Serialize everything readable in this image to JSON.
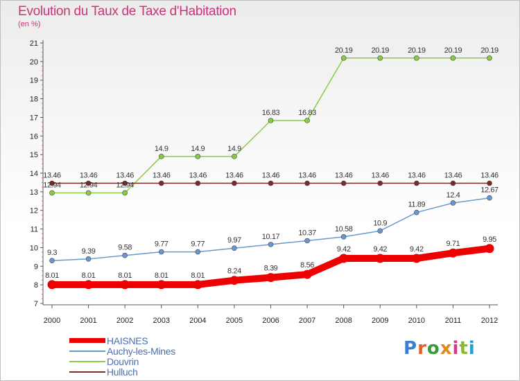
{
  "title": "Evolution du Taux de Taxe d'Habitation",
  "subtitle": "(en %)",
  "logo": {
    "text": "Proxiti",
    "letter_colors": [
      "#3a7fd0",
      "#e0602a",
      "#3a9a3a",
      "#e08a1a",
      "#d83a8a",
      "#8aba2a",
      "#2a9ad0"
    ]
  },
  "chart_data": {
    "type": "line",
    "x": [
      "2000",
      "2001",
      "2002",
      "2003",
      "2004",
      "2005",
      "2006",
      "2007",
      "2008",
      "2009",
      "2010",
      "2011",
      "2012"
    ],
    "ylim": [
      7,
      21
    ],
    "yticks": [
      7,
      8,
      9,
      10,
      11,
      12,
      13,
      14,
      15,
      16,
      17,
      18,
      19,
      20,
      21
    ],
    "grid": false,
    "legend_position": "bottom-left",
    "series": [
      {
        "name": "Douvrin",
        "color": "#88cc44",
        "values": [
          12.94,
          12.94,
          12.94,
          14.9,
          14.9,
          14.9,
          16.83,
          16.83,
          20.19,
          20.19,
          20.19,
          20.19,
          20.19
        ],
        "labels": [
          "12.94",
          "12.94",
          "12.94",
          "14.9",
          "14.9",
          "14.9",
          "16.83",
          "16.83",
          "20.19",
          "20.19",
          "20.19",
          "20.19",
          "20.19"
        ]
      },
      {
        "name": "Hulluch",
        "color": "#7a2a2a",
        "values": [
          13.46,
          13.46,
          13.46,
          13.46,
          13.46,
          13.46,
          13.46,
          13.46,
          13.46,
          13.46,
          13.46,
          13.46,
          13.46
        ],
        "labels": [
          "13.46",
          "13.46",
          "13.46",
          "13.46",
          "13.46",
          "13.46",
          "13.46",
          "13.46",
          "13.46",
          "13.46",
          "13.46",
          "13.46",
          "13.46"
        ]
      },
      {
        "name": "Auchy-les-Mines",
        "color": "#6699cc",
        "values": [
          9.3,
          9.39,
          9.58,
          9.77,
          9.77,
          9.97,
          10.17,
          10.37,
          10.58,
          10.9,
          11.89,
          12.4,
          12.67
        ],
        "labels": [
          "9.3",
          "9.39",
          "9.58",
          "9.77",
          "9.77",
          "9.97",
          "10.17",
          "10.37",
          "10.58",
          "10.9",
          "11.89",
          "12.4",
          "12.67"
        ]
      },
      {
        "name": "HAISNES",
        "color": "#ee0000",
        "values": [
          8.01,
          8.01,
          8.01,
          8.01,
          8.01,
          8.24,
          8.39,
          8.56,
          9.42,
          9.42,
          9.42,
          9.71,
          9.95
        ],
        "labels": [
          "8.01",
          "8.01",
          "8.01",
          "8.01",
          "8.01",
          "8.24",
          "8.39",
          "8.56",
          "9.42",
          "9.42",
          "9.42",
          "9.71",
          "9.95"
        ]
      }
    ],
    "legend": [
      {
        "name": "HAISNES",
        "color": "#ee0000"
      },
      {
        "name": "Auchy-les-Mines",
        "color": "#6699cc"
      },
      {
        "name": "Douvrin",
        "color": "#88cc44"
      },
      {
        "name": "Hulluch",
        "color": "#7a2a2a"
      }
    ]
  }
}
